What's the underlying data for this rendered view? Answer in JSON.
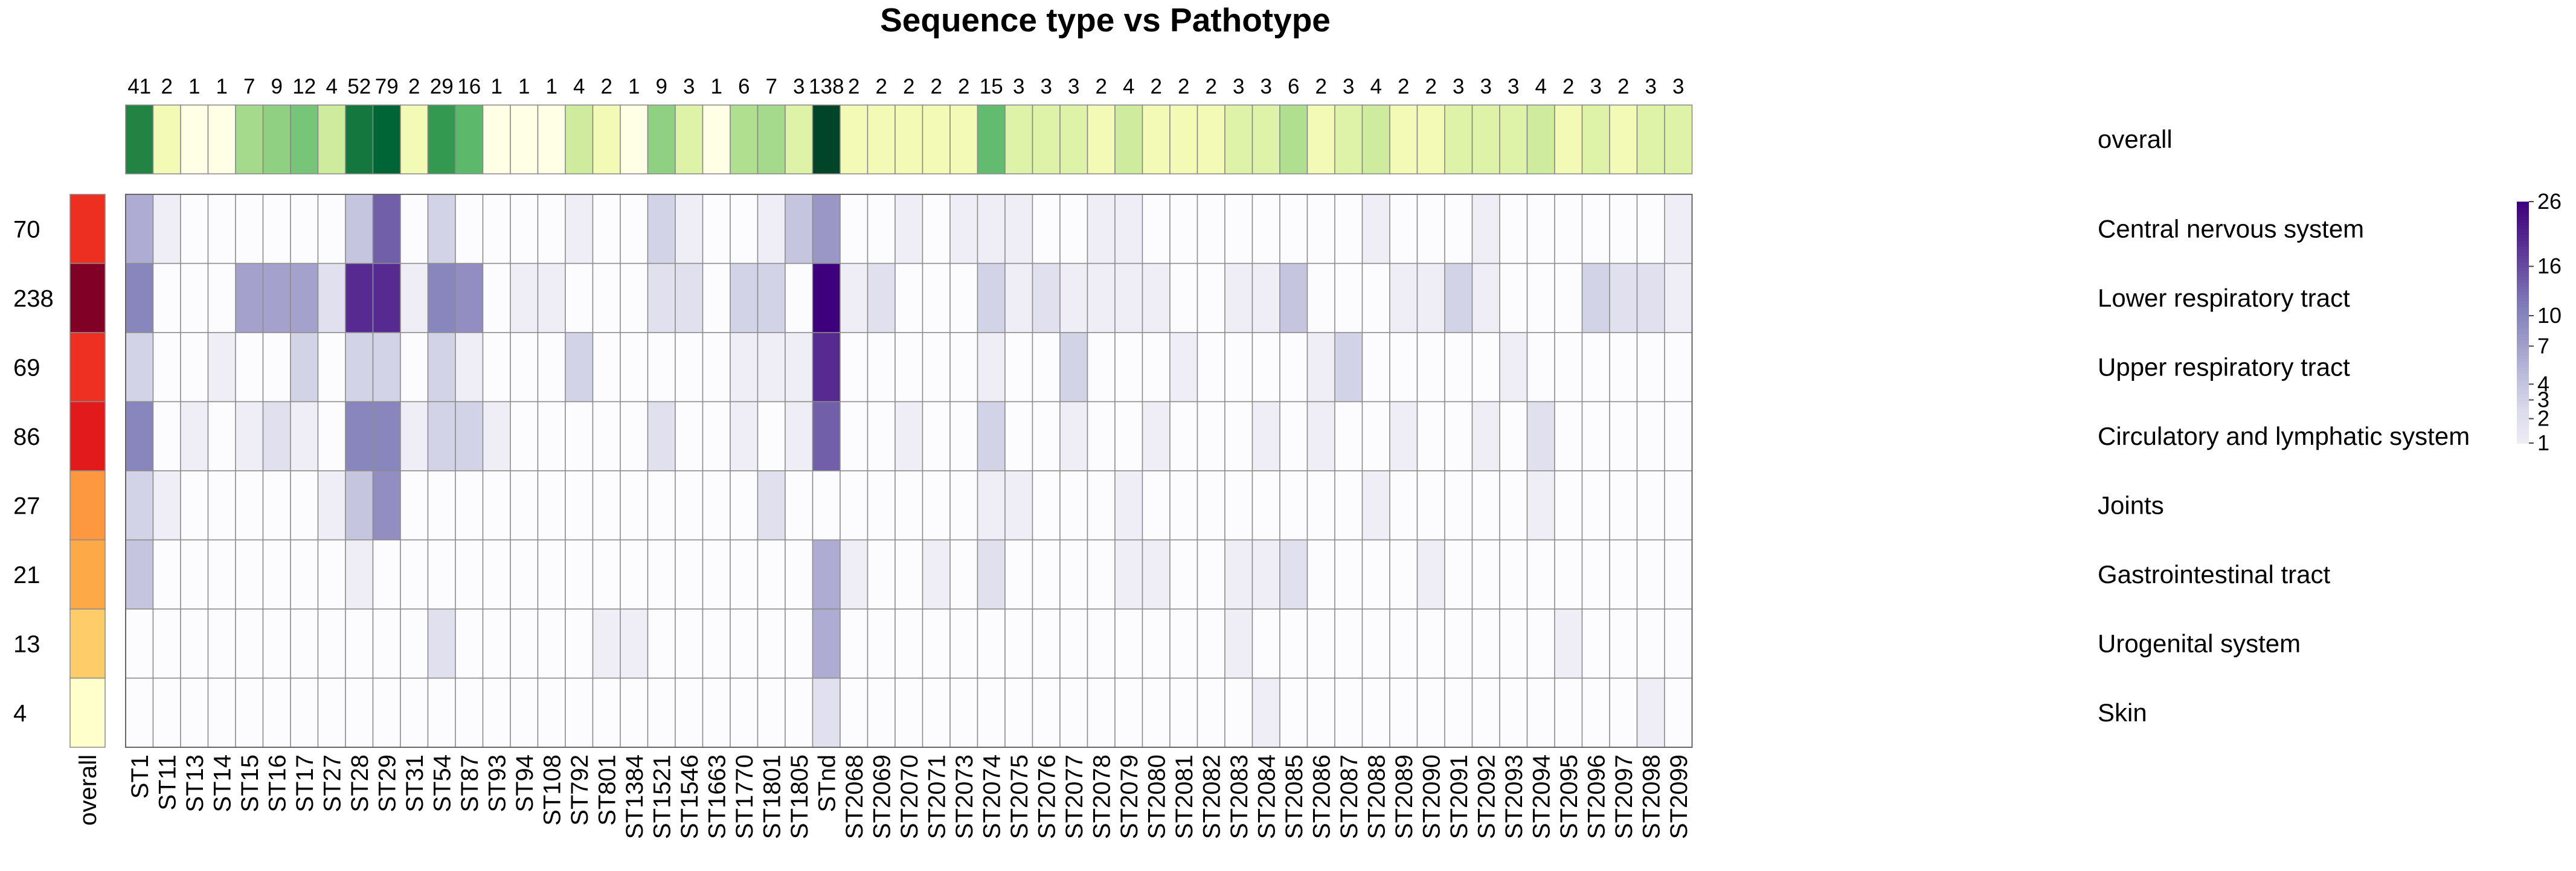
{
  "chart_data": {
    "type": "heatmap",
    "title": "Sequence type vs Pathotype",
    "columns": [
      "ST1",
      "ST11",
      "ST13",
      "ST14",
      "ST15",
      "ST16",
      "ST17",
      "ST27",
      "ST28",
      "ST29",
      "ST31",
      "ST54",
      "ST87",
      "ST93",
      "ST94",
      "ST108",
      "ST792",
      "ST801",
      "ST1384",
      "ST1521",
      "ST1546",
      "ST1663",
      "ST1770",
      "ST1801",
      "ST1805",
      "STnd",
      "ST2068",
      "ST2069",
      "ST2070",
      "ST2071",
      "ST2073",
      "ST2074",
      "ST2075",
      "ST2076",
      "ST2077",
      "ST2078",
      "ST2079",
      "ST2080",
      "ST2081",
      "ST2082",
      "ST2083",
      "ST2084",
      "ST2085",
      "ST2086",
      "ST2087",
      "ST2088",
      "ST2089",
      "ST2090",
      "ST2091",
      "ST2092",
      "ST2093",
      "ST2094",
      "ST2095",
      "ST2096",
      "ST2097",
      "ST2098",
      "ST2099"
    ],
    "column_totals": [
      41,
      2,
      1,
      1,
      7,
      9,
      12,
      4,
      52,
      79,
      2,
      29,
      16,
      1,
      1,
      1,
      4,
      2,
      1,
      9,
      3,
      1,
      6,
      7,
      3,
      138,
      2,
      2,
      2,
      2,
      2,
      15,
      3,
      3,
      3,
      2,
      4,
      2,
      2,
      2,
      3,
      3,
      6,
      2,
      3,
      4,
      2,
      2,
      3,
      3,
      3,
      4,
      2,
      3,
      2,
      3,
      3
    ],
    "overall_label": "overall",
    "rows": [
      "Central nervous system",
      "Lower respiratory tract",
      "Upper respiratory tract",
      "Circulatory and lymphatic system",
      "Joints",
      "Gastrointestinal tract",
      "Urogenital system",
      "Skin"
    ],
    "row_totals": [
      70,
      238,
      69,
      86,
      27,
      21,
      13,
      4
    ],
    "values": [
      [
        6,
        1,
        0,
        0,
        0,
        0,
        0,
        0,
        4,
        14,
        0,
        3,
        0,
        0,
        0,
        0,
        1,
        0,
        0,
        3,
        1,
        0,
        0,
        1,
        4,
        8,
        0,
        0,
        1,
        0,
        1,
        1,
        1,
        0,
        0,
        1,
        1,
        0,
        0,
        0,
        0,
        0,
        0,
        0,
        0,
        1,
        0,
        0,
        0,
        1,
        0,
        0,
        0,
        0,
        0,
        0,
        1
      ],
      [
        10,
        0,
        0,
        0,
        7,
        7,
        7,
        2,
        20,
        20,
        1,
        10,
        9,
        0,
        1,
        1,
        0,
        0,
        0,
        2,
        2,
        0,
        3,
        3,
        0,
        26,
        1,
        2,
        0,
        0,
        0,
        3,
        1,
        2,
        1,
        1,
        1,
        1,
        0,
        0,
        1,
        1,
        4,
        0,
        0,
        0,
        1,
        1,
        3,
        1,
        0,
        0,
        0,
        3,
        2,
        2,
        1
      ],
      [
        3,
        0,
        0,
        1,
        0,
        0,
        3,
        0,
        3,
        3,
        0,
        3,
        1,
        0,
        0,
        0,
        3,
        0,
        0,
        0,
        0,
        0,
        1,
        1,
        1,
        20,
        0,
        0,
        0,
        0,
        0,
        1,
        0,
        0,
        3,
        0,
        0,
        0,
        1,
        0,
        0,
        0,
        0,
        1,
        3,
        0,
        0,
        0,
        0,
        0,
        1,
        0,
        0,
        0,
        0,
        0,
        0
      ],
      [
        10,
        0,
        1,
        0,
        1,
        2,
        1,
        0,
        10,
        10,
        1,
        3,
        3,
        1,
        0,
        0,
        0,
        0,
        0,
        2,
        0,
        0,
        1,
        0,
        1,
        14,
        0,
        0,
        1,
        0,
        0,
        3,
        0,
        0,
        1,
        0,
        0,
        1,
        0,
        0,
        0,
        1,
        0,
        1,
        0,
        0,
        1,
        0,
        0,
        1,
        0,
        2,
        0,
        0,
        0,
        0,
        0
      ],
      [
        3,
        1,
        0,
        0,
        0,
        0,
        0,
        1,
        4,
        9,
        0,
        0,
        0,
        0,
        0,
        0,
        0,
        0,
        0,
        0,
        0,
        0,
        0,
        2,
        0,
        0,
        0,
        0,
        0,
        0,
        0,
        1,
        1,
        0,
        0,
        0,
        1,
        0,
        0,
        0,
        0,
        0,
        0,
        0,
        0,
        1,
        0,
        0,
        0,
        0,
        0,
        1,
        0,
        0,
        0,
        0,
        0
      ],
      [
        4,
        0,
        0,
        0,
        0,
        0,
        0,
        0,
        1,
        0,
        0,
        0,
        0,
        0,
        0,
        0,
        0,
        0,
        0,
        0,
        0,
        0,
        0,
        0,
        0,
        6,
        1,
        0,
        0,
        1,
        0,
        2,
        0,
        0,
        0,
        0,
        1,
        1,
        0,
        0,
        1,
        1,
        2,
        0,
        0,
        0,
        0,
        1,
        0,
        0,
        0,
        0,
        0,
        0,
        0,
        0,
        0
      ],
      [
        0,
        0,
        0,
        0,
        0,
        0,
        0,
        0,
        0,
        0,
        0,
        2,
        0,
        0,
        0,
        0,
        0,
        1,
        1,
        0,
        0,
        0,
        0,
        0,
        0,
        6,
        0,
        0,
        0,
        0,
        0,
        0,
        0,
        0,
        0,
        0,
        0,
        0,
        0,
        0,
        1,
        0,
        0,
        0,
        0,
        0,
        0,
        0,
        0,
        0,
        0,
        0,
        1,
        0,
        0,
        0,
        0
      ],
      [
        0,
        0,
        0,
        0,
        0,
        0,
        0,
        0,
        0,
        0,
        0,
        0,
        0,
        0,
        0,
        0,
        0,
        0,
        0,
        0,
        0,
        0,
        0,
        0,
        0,
        2,
        0,
        0,
        0,
        0,
        0,
        0,
        0,
        0,
        0,
        0,
        0,
        0,
        0,
        0,
        0,
        1,
        0,
        0,
        0,
        0,
        0,
        0,
        0,
        0,
        0,
        0,
        0,
        0,
        0,
        1,
        0
      ]
    ],
    "legend_ticks": [
      26,
      16,
      10,
      7,
      4,
      3,
      2,
      1
    ],
    "purple_scale": [
      "#fcfbfd",
      "#efedf5",
      "#dadaeb",
      "#bcbddc",
      "#9e9ac8",
      "#807dba",
      "#6a51a3",
      "#54278f",
      "#3f007d"
    ],
    "green_scale": [
      "#ffffe5",
      "#f7fcb9",
      "#d9f0a3",
      "#addd8e",
      "#78c679",
      "#41ab5d",
      "#238443",
      "#006837",
      "#004529"
    ],
    "red_scale": [
      "#ffffcc",
      "#ffeda0",
      "#fed976",
      "#feb24c",
      "#fd8d3c",
      "#fc4e2a",
      "#e31a1c",
      "#bd0026",
      "#800026"
    ]
  }
}
